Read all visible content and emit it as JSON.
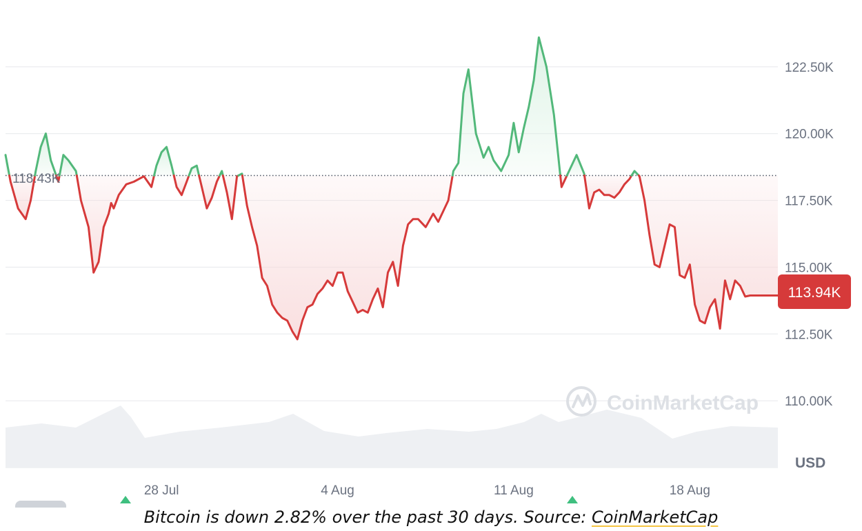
{
  "caption": {
    "text": "Bitcoin is down 2.82% over the past 30 days. Source: ",
    "source_link": "CoinMarketCap"
  },
  "watermark": {
    "text": "CoinMarketCap",
    "icon": "coinmarketcap-logo-icon"
  },
  "colors": {
    "up": "#52b87a",
    "down": "#d63a3a",
    "up_fill": "#d9f1e2",
    "down_fill": "#f8d9da",
    "volume": "#eef0f3",
    "grid": "#e6e8eb",
    "axis_text": "#6b7280",
    "marker": "#3fbf7f"
  },
  "chart_data": {
    "type": "line",
    "title": "",
    "xlabel": "",
    "ylabel": "USD",
    "ylim": [
      107500,
      125000
    ],
    "yticks": [
      110000,
      112500,
      115000,
      117500,
      120000,
      122500
    ],
    "ytick_labels": [
      "110.00K",
      "112.50K",
      "115.00K",
      "117.50K",
      "120.00K",
      "122.50K"
    ],
    "xtick_labels": [
      "28 Jul",
      "4 Aug",
      "11 Aug",
      "18 Aug"
    ],
    "xticks": [
      28,
      35,
      42,
      49
    ],
    "xlim": [
      21.8,
      52.5
    ],
    "baseline": {
      "value": 118430,
      "label": "118.43K"
    },
    "current": {
      "value": 113940,
      "label": "113.94K"
    },
    "grid": true,
    "series": [
      {
        "x": [
          21.8,
          22.0,
          22.3,
          22.6,
          22.8,
          23.0,
          23.2,
          23.4,
          23.6,
          23.9,
          24.1,
          24.3,
          24.6,
          24.8,
          25.1,
          25.3,
          25.5,
          25.7,
          25.9,
          26.0,
          26.1,
          26.3,
          26.6,
          26.9,
          27.3,
          27.6,
          27.8,
          28.0,
          28.2,
          28.4,
          28.6,
          28.8,
          29.0,
          29.2,
          29.4,
          29.6,
          29.8,
          30.0,
          30.2,
          30.4,
          30.6,
          30.8,
          31.0,
          31.2,
          31.4,
          31.6,
          31.8,
          31.9,
          32.0,
          32.2,
          32.4,
          32.6,
          32.8,
          33.0,
          33.2,
          33.4,
          33.6,
          33.8,
          34.0,
          34.2,
          34.4,
          34.6,
          34.8,
          35.0,
          35.2,
          35.4,
          35.6,
          35.8,
          36.0,
          36.2,
          36.4,
          36.6,
          36.8,
          37.0,
          37.2,
          37.4,
          37.6,
          37.8,
          38.0,
          38.2,
          38.5,
          38.8,
          39.0,
          39.2,
          39.4,
          39.6,
          39.8,
          40.0,
          40.2,
          40.5,
          40.8,
          41.0,
          41.2,
          41.5,
          41.8,
          42.0,
          42.2,
          42.4,
          42.6,
          42.8,
          43.0,
          43.3,
          43.6,
          43.9,
          44.2,
          44.5,
          44.8,
          45.0,
          45.2,
          45.4,
          45.6,
          45.8,
          46.0,
          46.2,
          46.4,
          46.6,
          46.8,
          47.0,
          47.2,
          47.4,
          47.6,
          47.8,
          48.0,
          48.2,
          48.4,
          48.6,
          48.8,
          49.0,
          49.2,
          49.4,
          49.6,
          49.8,
          50.0,
          50.2,
          50.4,
          50.6,
          50.8,
          51.0,
          51.2,
          51.4,
          51.6,
          51.8,
          52.0,
          52.2,
          52.5
        ],
        "values": [
          119200,
          118200,
          117200,
          116800,
          117500,
          118600,
          119500,
          120000,
          119000,
          118200,
          119200,
          119000,
          118600,
          117500,
          116500,
          114800,
          115200,
          116500,
          117000,
          117400,
          117200,
          117700,
          118100,
          118200,
          118400,
          118000,
          118800,
          119300,
          119500,
          118800,
          118000,
          117700,
          118200,
          118700,
          118800,
          118000,
          117200,
          117600,
          118200,
          118600,
          117800,
          116800,
          118400,
          118500,
          117300,
          116500,
          115800,
          115200,
          114600,
          114300,
          113600,
          113300,
          113100,
          113000,
          112600,
          112300,
          113000,
          113500,
          113600,
          114000,
          114200,
          114500,
          114300,
          114800,
          114800,
          114100,
          113700,
          113300,
          113400,
          113300,
          113800,
          114200,
          113500,
          114800,
          115200,
          114300,
          115800,
          116600,
          116800,
          116800,
          116500,
          117000,
          116700,
          117100,
          117500,
          118600,
          118900,
          121500,
          122400,
          120000,
          119100,
          119500,
          119000,
          118600,
          119200,
          120400,
          119300,
          120200,
          121000,
          122000,
          123600,
          122500,
          120700,
          118000,
          118600,
          119200,
          118500,
          117200,
          117800,
          117900,
          117700,
          117700,
          117600,
          117800,
          118100,
          118300,
          118600,
          118400,
          117500,
          116200,
          115100,
          115000,
          115800,
          116600,
          116500,
          114700,
          114600,
          115100,
          113600,
          113000,
          112900,
          113500,
          113800,
          112700,
          114500,
          113800,
          114500,
          114300,
          113900,
          113940,
          113940,
          113940,
          113940,
          113940,
          113940
        ]
      }
    ]
  }
}
